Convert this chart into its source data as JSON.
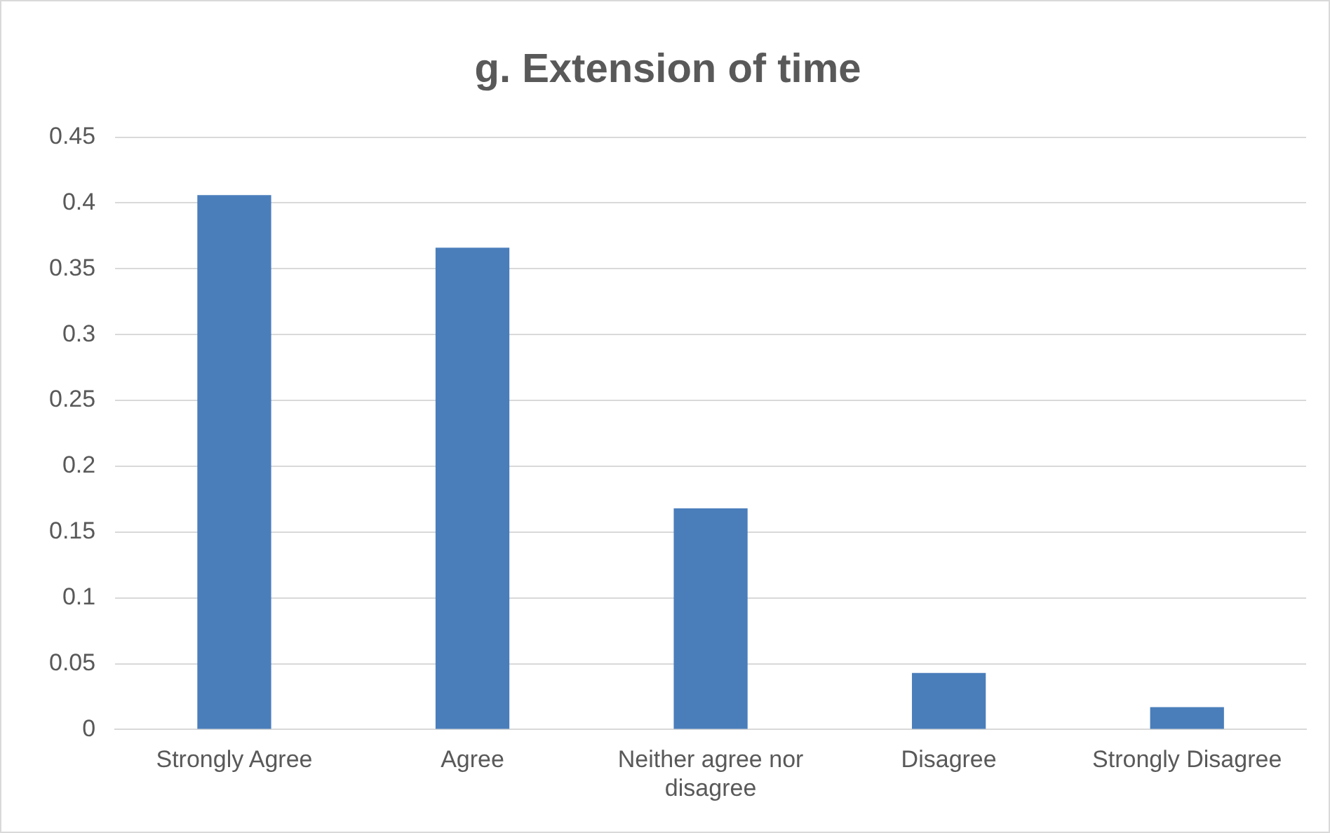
{
  "chart_data": {
    "type": "bar",
    "title": "g. Extension of time",
    "categories": [
      "Strongly Agree",
      "Agree",
      "Neither agree nor disagree",
      "Disagree",
      "Strongly Disagree"
    ],
    "values": [
      0.406,
      0.366,
      0.168,
      0.043,
      0.017
    ],
    "color": "#4a7ebb",
    "ylim": [
      0,
      0.45
    ],
    "yticks": [
      0,
      0.05,
      0.1,
      0.15,
      0.2,
      0.25,
      0.3,
      0.35,
      0.4,
      0.45
    ],
    "grid": "y",
    "legend": false
  }
}
